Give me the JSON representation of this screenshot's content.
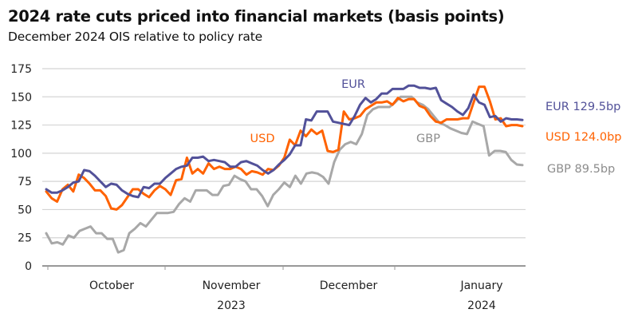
{
  "header": {
    "title": "2024 rate cuts priced into financial markets (basis points)",
    "subtitle": "December 2024 OIS relative to policy rate"
  },
  "chart_data": {
    "type": "line",
    "title": "2024 rate cuts priced into financial markets (basis points)",
    "subtitle": "December 2024 OIS relative to policy rate",
    "xlabel": "",
    "ylabel": "",
    "ylim": [
      0,
      175
    ],
    "yticks": [
      0,
      25,
      50,
      75,
      100,
      125,
      150,
      175
    ],
    "grid": true,
    "x_month_ticks": [
      {
        "label": "October",
        "year": ""
      },
      {
        "label": "November",
        "year": "2023"
      },
      {
        "label": "December",
        "year": ""
      },
      {
        "label": "January",
        "year": "2024"
      }
    ],
    "series": [
      {
        "name": "EUR",
        "color": "#525199",
        "inline_label": "EUR",
        "end_label": "EUR 129.5bp",
        "values": [
          68,
          65,
          65,
          67,
          70,
          74,
          75,
          85,
          84,
          80,
          75,
          70,
          73,
          72,
          67,
          64,
          62,
          61,
          70,
          69,
          73,
          73,
          78,
          82,
          86,
          88,
          89,
          96,
          96,
          97,
          93,
          94,
          93,
          92,
          88,
          88,
          92,
          93,
          91,
          89,
          85,
          82,
          85,
          90,
          94,
          99,
          107,
          107,
          130,
          129,
          137,
          137,
          137,
          128,
          127,
          126,
          125,
          133,
          143,
          149,
          145,
          148,
          153,
          153,
          157,
          157,
          157,
          160,
          160,
          158,
          158,
          157,
          158,
          147,
          144,
          141,
          137,
          134,
          140,
          152,
          145,
          143,
          132,
          133,
          128,
          131,
          130,
          130,
          129.5
        ]
      },
      {
        "name": "USD",
        "color": "#ff6200",
        "inline_label": "USD",
        "end_label": "USD 124.0bp",
        "values": [
          66,
          60,
          57,
          68,
          72,
          66,
          81,
          78,
          73,
          67,
          67,
          62,
          51,
          50,
          54,
          61,
          68,
          68,
          64,
          61,
          67,
          71,
          68,
          63,
          76,
          77,
          96,
          82,
          86,
          82,
          91,
          86,
          88,
          86,
          86,
          88,
          86,
          81,
          84,
          83,
          81,
          86,
          85,
          89,
          96,
          112,
          107,
          120,
          115,
          121,
          117,
          120,
          102,
          101,
          103,
          137,
          130,
          131,
          133,
          139,
          142,
          145,
          145,
          146,
          143,
          149,
          146,
          148,
          148,
          142,
          140,
          133,
          128,
          127,
          130,
          130,
          130,
          131,
          131,
          145,
          159,
          159,
          146,
          130,
          131,
          124,
          125,
          125,
          124
        ]
      },
      {
        "name": "GBP",
        "color": "#a8a8a8",
        "inline_label": "GBP",
        "end_label": "GBP 89.5bp",
        "values": [
          29,
          20,
          21,
          19,
          27,
          25,
          31,
          33,
          35,
          29,
          29,
          24,
          24,
          12,
          14,
          29,
          33,
          38,
          35,
          41,
          47,
          47,
          47,
          48,
          55,
          60,
          57,
          67,
          67,
          67,
          63,
          63,
          71,
          72,
          80,
          77,
          75,
          68,
          68,
          62,
          53,
          63,
          68,
          74,
          70,
          80,
          73,
          82,
          83,
          82,
          79,
          73,
          92,
          103,
          108,
          110,
          108,
          117,
          134,
          139,
          141,
          141,
          141,
          145,
          150,
          150,
          150,
          145,
          143,
          139,
          133,
          127,
          125,
          122,
          120,
          118,
          117,
          128,
          126,
          124,
          98,
          102,
          102,
          101,
          94,
          90,
          89.5
        ]
      }
    ]
  }
}
